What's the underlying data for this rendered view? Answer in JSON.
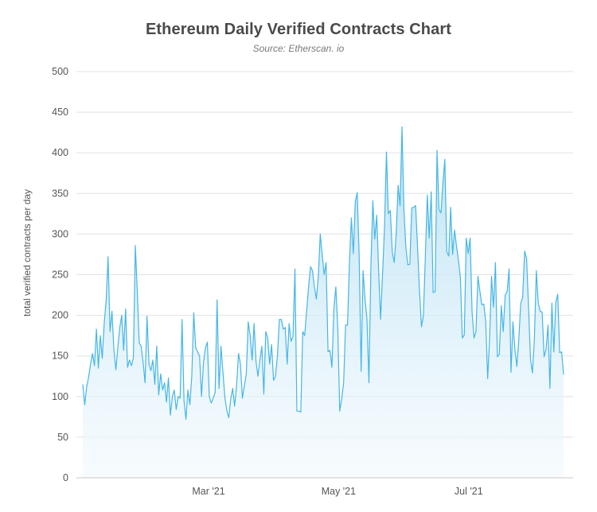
{
  "chart_data": {
    "type": "area",
    "title": "Ethereum Daily Verified Contracts Chart",
    "subtitle": "Source: Etherscan. io",
    "xlabel": "",
    "ylabel": "total verified contracts per day",
    "ylim": [
      0,
      500
    ],
    "y_ticks": [
      "0",
      "50",
      "100",
      "150",
      "200",
      "250",
      "300",
      "350",
      "400",
      "450",
      "500"
    ],
    "x_ticks": [
      {
        "label": "Mar '21",
        "date": "2021-03-01"
      },
      {
        "label": "May '21",
        "date": "2021-05-01"
      },
      {
        "label": "Jul '21",
        "date": "2021-07-01"
      }
    ],
    "grid": "horizontal",
    "x_start": "2021-01-01",
    "x_end": "2021-08-16",
    "colors": {
      "line": "#45b6e6",
      "fill_top": "#b4dff3",
      "fill_bottom": "#f2f9fd",
      "grid": "#e2e2e2",
      "axis": "#c8c8c8"
    },
    "series": [
      {
        "name": "",
        "values": [
          115,
          90,
          112,
          124,
          140,
          153,
          138,
          183,
          135,
          175,
          147,
          190,
          218,
          272,
          180,
          205,
          157,
          133,
          160,
          185,
          200,
          157,
          208,
          136,
          145,
          138,
          148,
          286,
          230,
          166,
          162,
          142,
          117,
          199,
          140,
          132,
          145,
          115,
          162,
          102,
          128,
          108,
          117,
          93,
          123,
          77,
          100,
          108,
          84,
          100,
          98,
          195,
          95,
          72,
          108,
          90,
          125,
          203,
          160,
          155,
          150,
          100,
          142,
          160,
          167,
          100,
          92,
          98,
          105,
          219,
          110,
          162,
          130,
          99,
          83,
          74,
          97,
          110,
          88,
          113,
          153,
          140,
          98,
          113,
          128,
          192,
          175,
          145,
          190,
          143,
          125,
          145,
          162,
          103,
          180,
          172,
          140,
          164,
          120,
          125,
          150,
          195,
          195,
          183,
          185,
          140,
          190,
          168,
          174,
          257,
          82,
          82,
          81,
          180,
          175,
          205,
          235,
          260,
          255,
          235,
          220,
          248,
          300,
          275,
          250,
          265,
          155,
          157,
          136,
          208,
          235,
          185,
          82,
          97,
          117,
          188,
          188,
          265,
          320,
          276,
          340,
          351,
          272,
          131,
          255,
          220,
          196,
          117,
          258,
          341,
          294,
          323,
          255,
          195,
          251,
          308,
          401,
          325,
          329,
          278,
          265,
          300,
          360,
          335,
          432,
          330,
          283,
          262,
          263,
          332,
          333,
          335,
          283,
          230,
          186,
          200,
          273,
          348,
          295,
          352,
          228,
          229,
          403,
          330,
          326,
          363,
          392,
          278,
          273,
          333,
          275,
          305,
          285,
          268,
          246,
          172,
          176,
          295,
          276,
          295,
          204,
          172,
          180,
          248,
          230,
          213,
          214,
          193,
          122,
          172,
          248,
          210,
          265,
          149,
          152,
          212,
          180,
          225,
          229,
          257,
          130,
          192,
          158,
          137,
          170,
          215,
          222,
          279,
          270,
          211,
          147,
          129,
          170,
          255,
          215,
          205,
          204,
          149,
          158,
          188,
          110,
          215,
          155,
          216,
          226,
          154,
          155,
          127
        ]
      }
    ]
  }
}
